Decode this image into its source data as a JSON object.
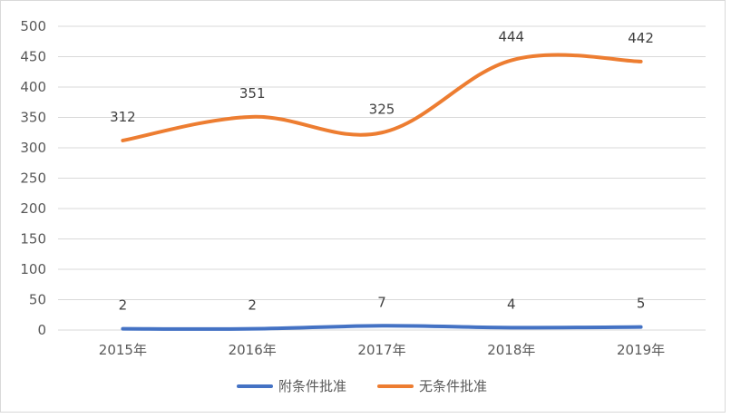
{
  "chart_data": {
    "type": "line",
    "title": "",
    "xlabel": "",
    "ylabel": "",
    "categories": [
      "2015年",
      "2016年",
      "2017年",
      "2018年",
      "2019年"
    ],
    "ylim": [
      0,
      500
    ],
    "yticks": [
      0,
      50,
      100,
      150,
      200,
      250,
      300,
      350,
      400,
      450,
      500
    ],
    "grid": true,
    "legend_position": "bottom",
    "series": [
      {
        "name": "附条件批准",
        "values": [
          2,
          2,
          7,
          4,
          5
        ],
        "color": "#4472c4"
      },
      {
        "name": "无条件批准",
        "values": [
          312,
          351,
          325,
          444,
          442
        ],
        "color": "#ed7d31"
      }
    ]
  }
}
